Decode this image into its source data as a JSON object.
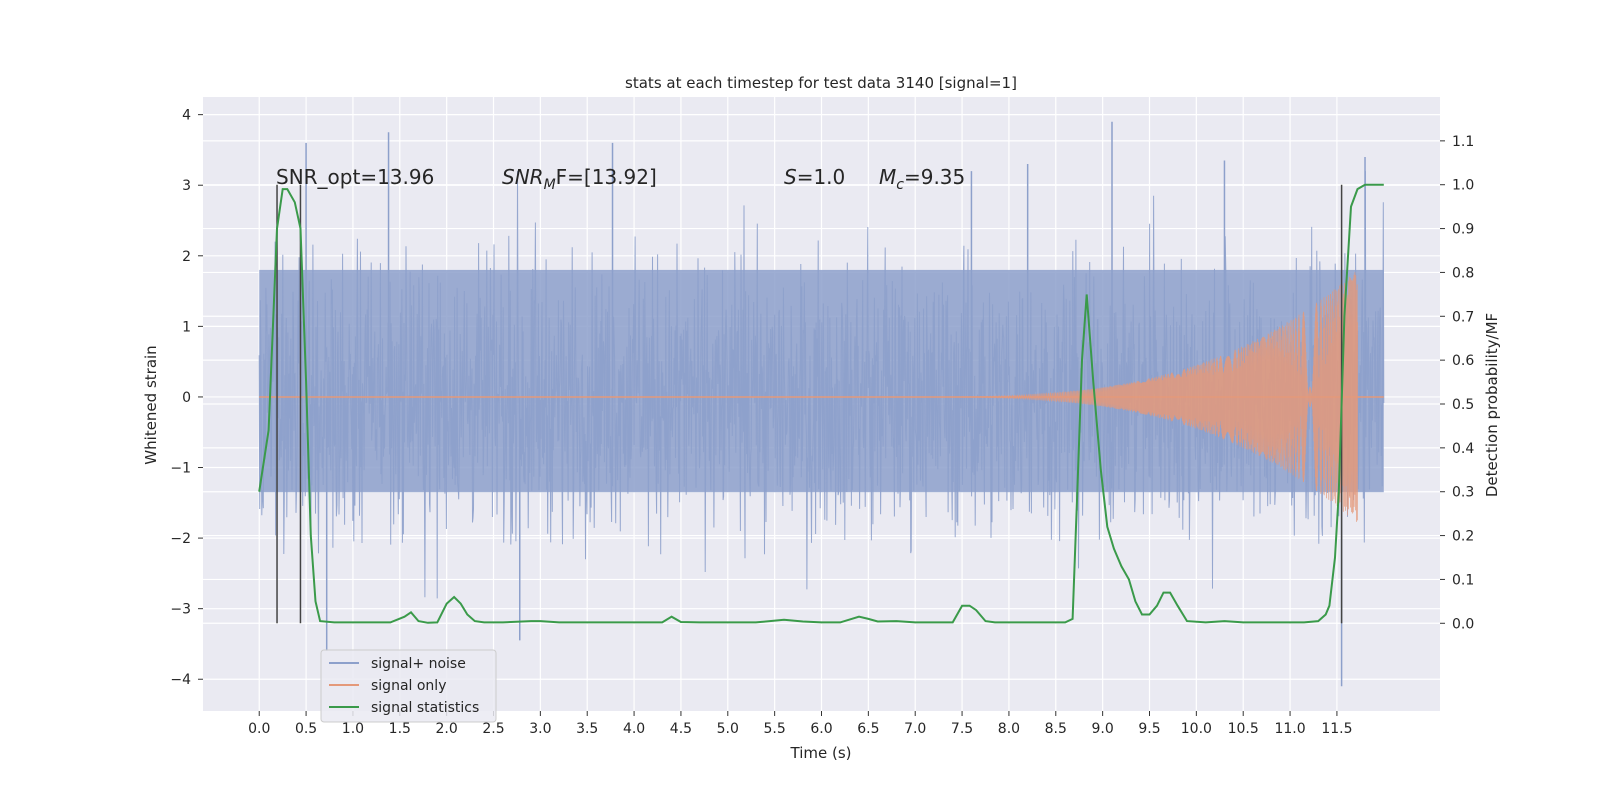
{
  "chart_data": {
    "type": "line",
    "title": "stats at each timestep for test data 3140 [signal=1]",
    "xlabel": "Time (s)",
    "ylabel": "Whitened strain",
    "ylabel_right": "Detection probability/MF",
    "xlim": [
      -0.6,
      12.6
    ],
    "ylim": [
      -4.45,
      4.25
    ],
    "ylim_right": [
      -0.2,
      1.2
    ],
    "grid": true,
    "legend_position": "lower-left",
    "x_ticks": [
      "0.0",
      "0.5",
      "1.0",
      "1.5",
      "2.0",
      "2.5",
      "3.0",
      "3.5",
      "4.0",
      "4.5",
      "5.0",
      "5.5",
      "6.0",
      "6.5",
      "7.0",
      "7.5",
      "8.0",
      "8.5",
      "9.0",
      "9.5",
      "10.0",
      "10.5",
      "11.0",
      "11.5"
    ],
    "y_ticks": [
      4,
      3,
      2,
      1,
      0,
      -1,
      -2,
      -3,
      -4
    ],
    "y_tick_labels": [
      "4",
      "3",
      "2",
      "1",
      "0",
      "−1",
      "−2",
      "−3",
      "−4"
    ],
    "y_right_ticks": [
      1.1,
      1.0,
      0.9,
      0.8,
      0.7,
      0.6,
      0.5,
      0.4,
      0.3,
      0.2,
      0.1,
      0.0
    ],
    "y_right_tick_labels": [
      "1.1",
      "1.0",
      "0.9",
      "0.8",
      "0.7",
      "0.6",
      "0.5",
      "0.4",
      "0.3",
      "0.2",
      "0.1",
      "0.0"
    ],
    "annotations": {
      "snr_opt": "SNR_opt=13.96",
      "snr_mf_main": "SNR",
      "snr_mf_sub": "M",
      "snr_mf_rest": "F=[13.92]",
      "s_main": "S",
      "s_rest": "=1.0",
      "mc_main": "M",
      "mc_sub": "c",
      "mc_rest": "=9.35"
    },
    "vertical_markers": [
      0.19,
      0.44,
      11.55
    ],
    "noise_band": {
      "t_start": 0.0,
      "t_end": 12.0,
      "core_min": -1.35,
      "core_max": 1.8
    },
    "noise_peaks": [
      {
        "x": 0.5,
        "y": 3.6
      },
      {
        "x": 1.38,
        "y": 3.75
      },
      {
        "x": 3.77,
        "y": 3.6
      },
      {
        "x": 9.1,
        "y": 3.9
      },
      {
        "x": 11.8,
        "y": 3.4
      },
      {
        "x": 11.55,
        "y": -4.1
      },
      {
        "x": 2.78,
        "y": -3.45
      },
      {
        "x": 0.72,
        "y": -3.6
      },
      {
        "x": 7.6,
        "y": 3.2
      },
      {
        "x": 10.3,
        "y": 3.35
      },
      {
        "x": 8.2,
        "y": 3.3
      }
    ],
    "series": [
      {
        "name": "signal+ noise",
        "color": "#8da0cb",
        "axis": "left"
      },
      {
        "name": "signal only",
        "color": "#e4997a",
        "axis": "left",
        "chirp": {
          "t_start": 6.8,
          "t_end": 11.72,
          "amp_end": 1.8,
          "freq_start": 18,
          "freq_end": 120
        }
      },
      {
        "name": "signal statistics",
        "color": "#3a9a4a",
        "axis": "right",
        "x": [
          0.0,
          0.1,
          0.19,
          0.25,
          0.3,
          0.38,
          0.44,
          0.5,
          0.55,
          0.6,
          0.65,
          0.8,
          1.0,
          1.2,
          1.4,
          1.55,
          1.62,
          1.7,
          1.8,
          1.9,
          2.0,
          2.08,
          2.15,
          2.22,
          2.3,
          2.4,
          2.6,
          2.9,
          3.0,
          3.2,
          3.6,
          4.0,
          4.3,
          4.4,
          4.5,
          4.7,
          5.0,
          5.3,
          5.6,
          5.8,
          6.0,
          6.2,
          6.4,
          6.5,
          6.6,
          6.8,
          7.0,
          7.2,
          7.4,
          7.5,
          7.58,
          7.65,
          7.75,
          7.85,
          8.0,
          8.3,
          8.6,
          8.68,
          8.73,
          8.78,
          8.83,
          8.9,
          8.98,
          9.05,
          9.12,
          9.2,
          9.28,
          9.35,
          9.42,
          9.5,
          9.58,
          9.65,
          9.72,
          9.8,
          9.9,
          10.1,
          10.3,
          10.5,
          10.8,
          11.0,
          11.15,
          11.3,
          11.38,
          11.42,
          11.48,
          11.52,
          11.58,
          11.65,
          11.72,
          11.8,
          11.9,
          12.0
        ],
        "values": [
          0.3,
          0.44,
          0.9,
          0.99,
          0.99,
          0.96,
          0.9,
          0.55,
          0.2,
          0.05,
          0.005,
          0.002,
          0.002,
          0.002,
          0.002,
          0.015,
          0.025,
          0.005,
          0.001,
          0.002,
          0.045,
          0.06,
          0.045,
          0.02,
          0.005,
          0.002,
          0.002,
          0.005,
          0.005,
          0.002,
          0.002,
          0.002,
          0.002,
          0.015,
          0.003,
          0.002,
          0.002,
          0.002,
          0.008,
          0.004,
          0.002,
          0.002,
          0.015,
          0.01,
          0.004,
          0.005,
          0.002,
          0.002,
          0.002,
          0.04,
          0.04,
          0.03,
          0.005,
          0.002,
          0.002,
          0.002,
          0.002,
          0.01,
          0.3,
          0.6,
          0.75,
          0.55,
          0.35,
          0.22,
          0.17,
          0.13,
          0.1,
          0.05,
          0.02,
          0.02,
          0.04,
          0.07,
          0.07,
          0.04,
          0.005,
          0.002,
          0.005,
          0.002,
          0.002,
          0.002,
          0.002,
          0.005,
          0.02,
          0.04,
          0.15,
          0.3,
          0.7,
          0.95,
          0.99,
          1.0,
          1.0,
          1.0
        ]
      }
    ]
  }
}
